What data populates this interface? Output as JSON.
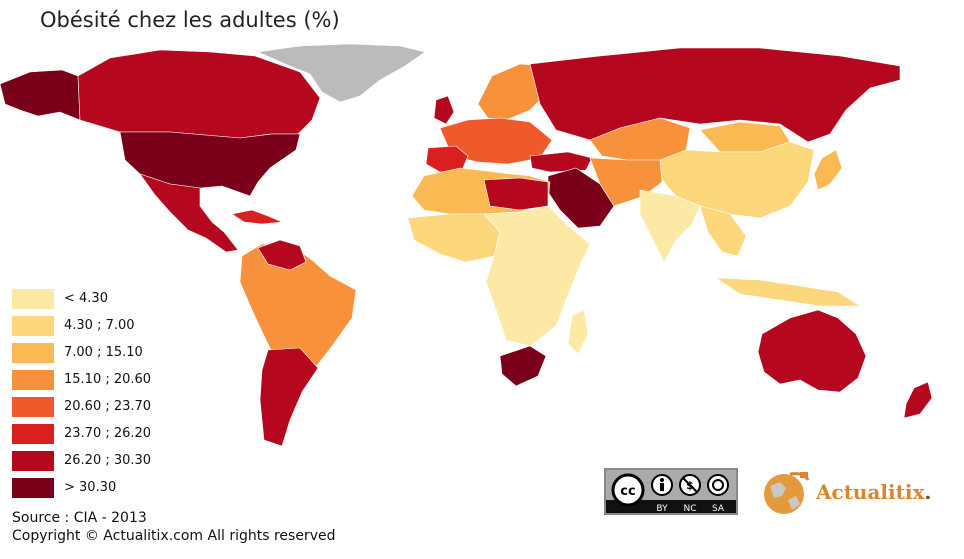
{
  "title": "Obésité chez les adultes (%)",
  "legend": [
    {
      "label": "< 4.30",
      "color": "#fde9a6"
    },
    {
      "label": "4.30 ; 7.00",
      "color": "#fcd77b"
    },
    {
      "label": "7.00 ; 15.10",
      "color": "#fbb954"
    },
    {
      "label": "15.10 ; 20.60",
      "color": "#f7913c"
    },
    {
      "label": "20.60 ; 23.70",
      "color": "#f05a2b"
    },
    {
      "label": "23.70 ; 26.20",
      "color": "#d9201e"
    },
    {
      "label": "26.20 ; 30.30",
      "color": "#b5081e"
    },
    {
      "label": "> 30.30",
      "color": "#7a0019"
    }
  ],
  "no_data_color": "#bbbbbb",
  "source": "Source : CIA - 2013",
  "copyright": "Copyright © Actualitix.com All rights reserved",
  "license": {
    "by": "BY",
    "nc": "NC",
    "sa": "SA"
  },
  "brand": {
    "name": "Actualitix",
    "dot": "."
  }
}
